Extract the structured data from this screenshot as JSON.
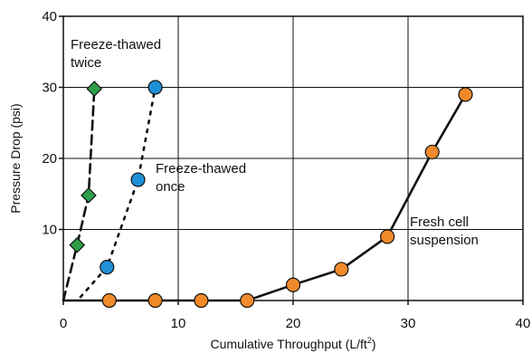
{
  "chart_data": {
    "type": "line",
    "xlabel": "Cumulative Throughput (L/ft",
    "xlabel_sup": "2",
    "xlabel_suffix": ")",
    "ylabel": "Pressure Drop (psi)",
    "xlim": [
      0,
      40
    ],
    "ylim": [
      0,
      40
    ],
    "x_ticks": [
      0,
      10,
      20,
      30,
      40
    ],
    "y_ticks": [
      10,
      20,
      30,
      40
    ],
    "grid": true,
    "series": [
      {
        "name": "Freeze-thawed twice",
        "label_lines": [
          "Freeze-thawed",
          "twice"
        ],
        "marker": "diamond",
        "color": "#2e9e4a",
        "line_style": "dashed",
        "points": [
          [
            1.2,
            7.8
          ],
          [
            2.2,
            14.8
          ],
          [
            2.7,
            29.8
          ]
        ],
        "line": [
          [
            0,
            0
          ],
          [
            1.2,
            7.8
          ],
          [
            2.2,
            14.8
          ],
          [
            2.7,
            29.8
          ]
        ]
      },
      {
        "name": "Freeze-thawed once",
        "label_lines": [
          "Freeze-thawed",
          "once"
        ],
        "marker": "circle",
        "color": "#1f8fd6",
        "line_style": "dotted",
        "points": [
          [
            3.8,
            4.7
          ],
          [
            6.5,
            17.0
          ],
          [
            8.0,
            30.0
          ]
        ],
        "line": [
          [
            1.5,
            0.5
          ],
          [
            3.8,
            4.7
          ],
          [
            6.5,
            17.0
          ],
          [
            8.0,
            30.0
          ]
        ]
      },
      {
        "name": "Fresh cell suspension",
        "label_lines": [
          "Fresh cell",
          "suspension"
        ],
        "marker": "circle",
        "color": "#f08a2a",
        "line_style": "solid",
        "points": [
          [
            4,
            0
          ],
          [
            8,
            0
          ],
          [
            12,
            0
          ],
          [
            16,
            0
          ],
          [
            20,
            2.2
          ],
          [
            24.2,
            4.4
          ],
          [
            28.2,
            9.0
          ],
          [
            32.1,
            20.9
          ],
          [
            35,
            29.0
          ]
        ],
        "line": [
          [
            0,
            0
          ],
          [
            16,
            0
          ],
          [
            20,
            2.2
          ],
          [
            24.2,
            4.4
          ],
          [
            28.2,
            9.0
          ],
          [
            32.1,
            20.9
          ],
          [
            35,
            29.0
          ]
        ]
      }
    ]
  }
}
